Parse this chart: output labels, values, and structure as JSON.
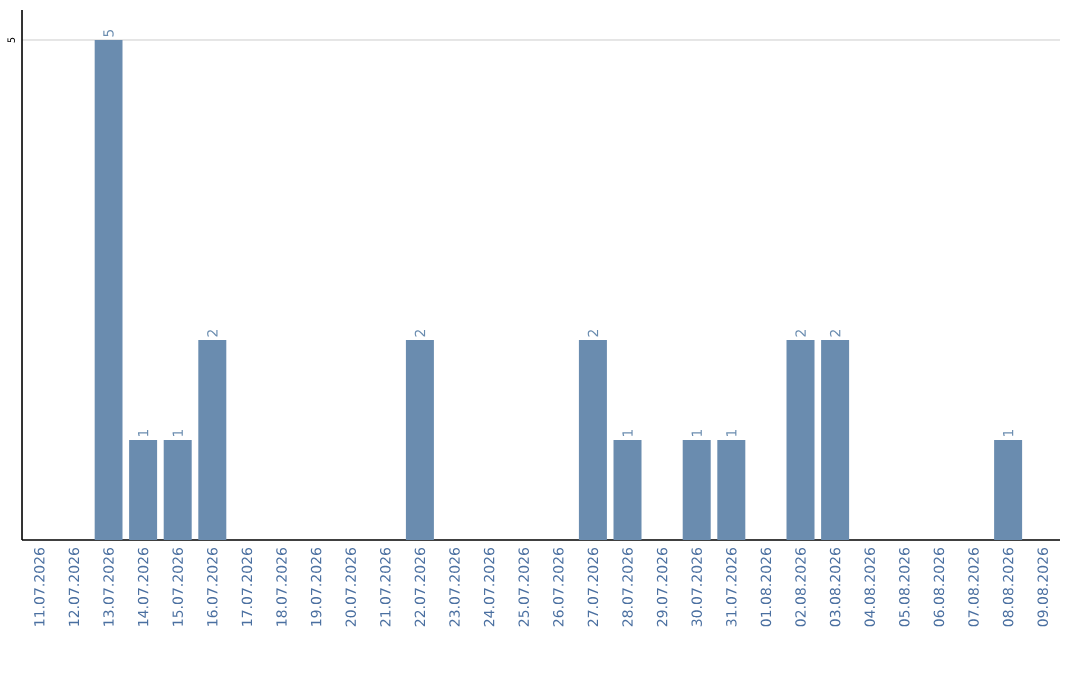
{
  "chart_data": {
    "type": "bar",
    "categories": [
      "11.07.2026",
      "12.07.2026",
      "13.07.2026",
      "14.07.2026",
      "15.07.2026",
      "16.07.2026",
      "17.07.2026",
      "18.07.2026",
      "19.07.2026",
      "20.07.2026",
      "21.07.2026",
      "22.07.2026",
      "23.07.2026",
      "24.07.2026",
      "25.07.2026",
      "26.07.2026",
      "27.07.2026",
      "28.07.2026",
      "29.07.2026",
      "30.07.2026",
      "31.07.2026",
      "01.08.2026",
      "02.08.2026",
      "03.08.2026",
      "04.08.2026",
      "05.08.2026",
      "06.08.2026",
      "07.08.2026",
      "08.08.2026",
      "09.08.2026"
    ],
    "values": [
      null,
      null,
      5,
      1,
      1,
      2,
      null,
      null,
      null,
      null,
      null,
      2,
      null,
      null,
      null,
      null,
      2,
      1,
      null,
      1,
      1,
      null,
      2,
      2,
      null,
      null,
      null,
      null,
      1,
      null
    ],
    "color": "#6a8caf",
    "ylim": [
      0,
      5.3
    ],
    "yticks": [
      5
    ],
    "grid": "y",
    "data_labels": true
  }
}
